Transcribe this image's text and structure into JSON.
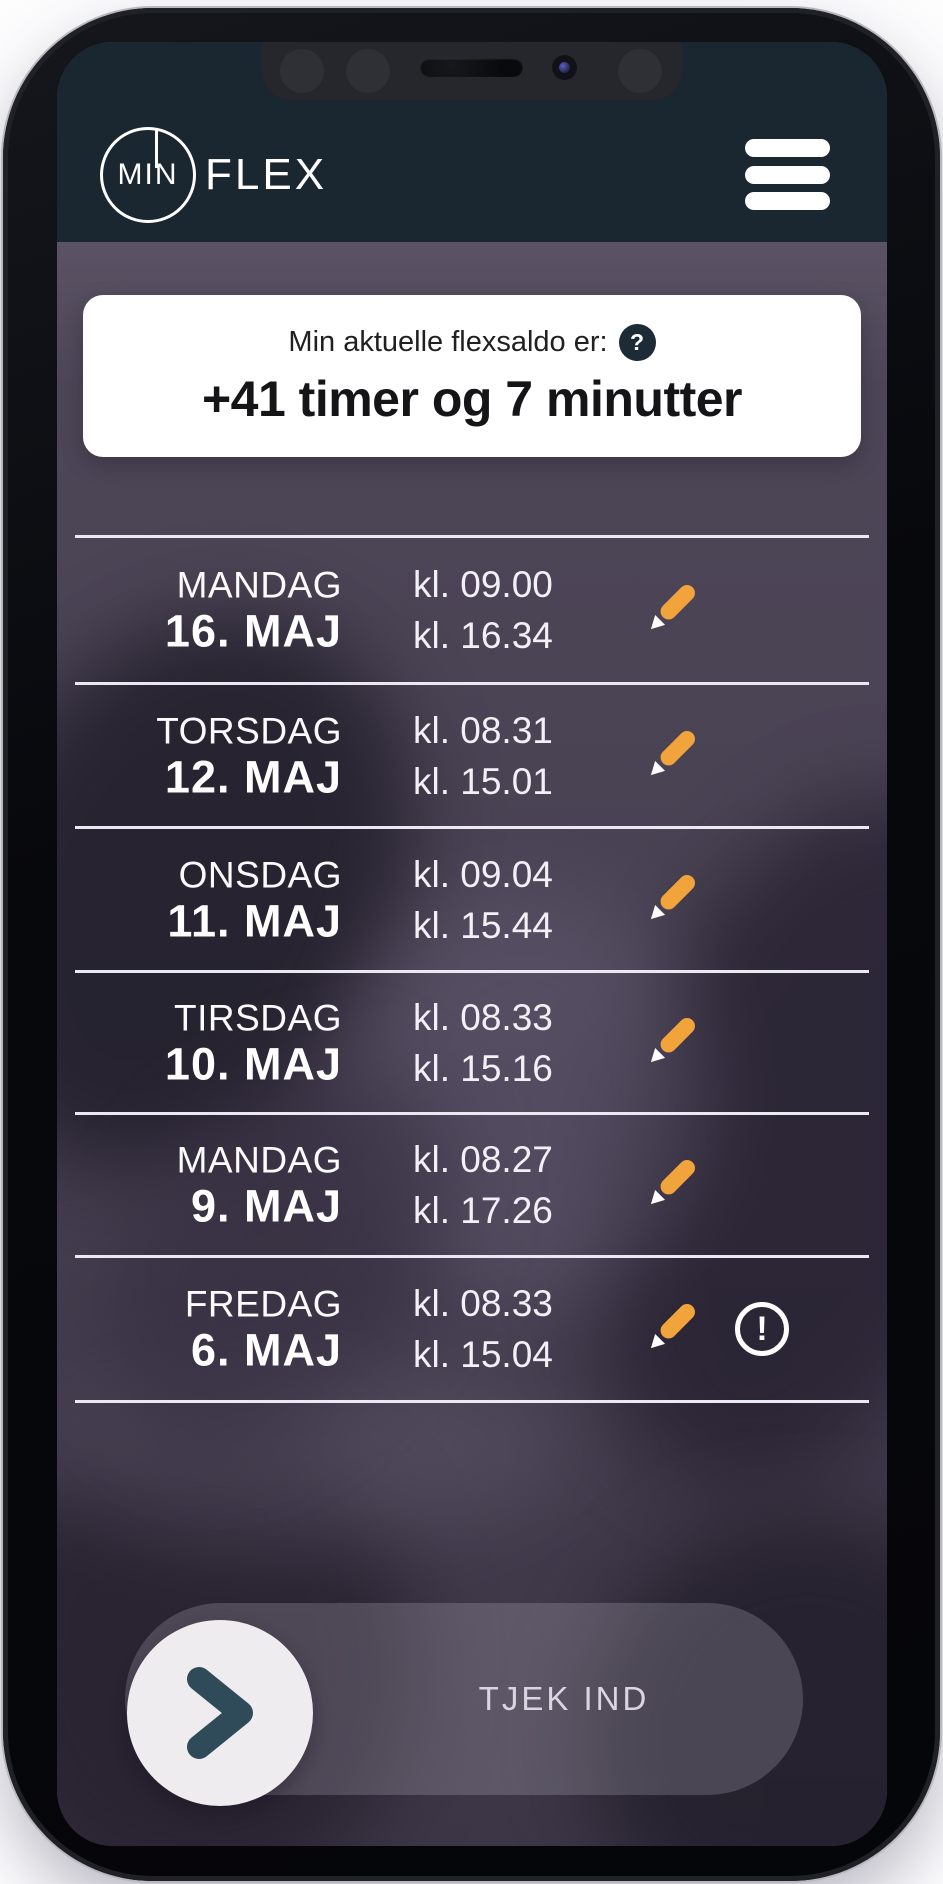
{
  "header": {
    "logo_min": "MIN",
    "logo_flex": "FLEX",
    "menu_icon": "hamburger-menu-icon"
  },
  "balance_card": {
    "label": "Min aktuelle flexsaldo er:",
    "help_icon": "?",
    "value": "+41 timer og 7 minutter"
  },
  "days": [
    {
      "weekday": "MANDAG",
      "date": "16. MAJ",
      "check_in": "kl. 09.00",
      "check_out": "kl. 16.34",
      "has_warning": false
    },
    {
      "weekday": "TORSDAG",
      "date": "12. MAJ",
      "check_in": "kl. 08.31",
      "check_out": "kl. 15.01",
      "has_warning": false
    },
    {
      "weekday": "ONSDAG",
      "date": "11. MAJ",
      "check_in": "kl. 09.04",
      "check_out": "kl. 15.44",
      "has_warning": false
    },
    {
      "weekday": "TIRSDAG",
      "date": "10. MAJ",
      "check_in": "kl. 08.33",
      "check_out": "kl. 15.16",
      "has_warning": false
    },
    {
      "weekday": "MANDAG",
      "date": "9. MAJ",
      "check_in": "kl. 08.27",
      "check_out": "kl. 17.26",
      "has_warning": false
    },
    {
      "weekday": "FREDAG",
      "date": "6. MAJ",
      "check_in": "kl. 08.33",
      "check_out": "kl. 15.04",
      "has_warning": true
    }
  ],
  "warning_icon_glyph": "!",
  "check_in_button": {
    "label": "TJEK IND",
    "icon": "chevron-right-icon"
  },
  "colors": {
    "header_bg": "#1b2730",
    "screen_purple": "#4b4455",
    "card_bg": "#ffffff",
    "pencil_orange": "#f2a43c",
    "chevron_teal": "#2f4b59",
    "divider": "#eae8f0",
    "badge_bg": "#1c2b35"
  }
}
